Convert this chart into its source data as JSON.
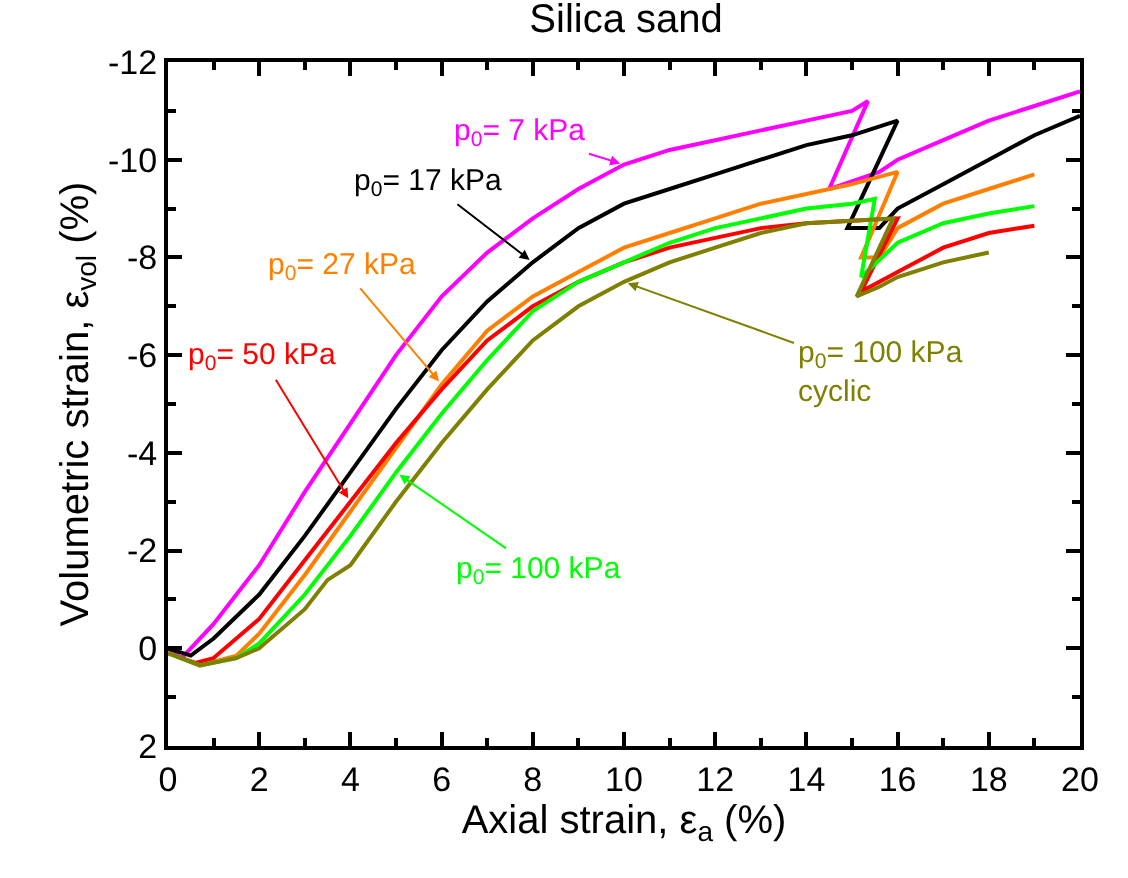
{
  "chart_data": {
    "type": "line",
    "title": "Silica sand",
    "xlabel": "Axial strain, ε$_{a}$ (%)",
    "ylabel": "Volumetric strain, ε$_{vol}$ (%)",
    "xlim": [
      0,
      20
    ],
    "xticks": [
      0,
      2,
      4,
      6,
      8,
      10,
      12,
      14,
      16,
      18,
      20
    ],
    "ylim": [
      2,
      -12
    ],
    "yticks": [
      2,
      0,
      -2,
      -4,
      -6,
      -8,
      -10,
      -12
    ],
    "grid": false,
    "legend": false,
    "marker": "none",
    "line_style": "solid",
    "series": [
      {
        "name": "p$_{0}$= 7 kPa",
        "color": "#ff00ff",
        "x": [
          0,
          0.3,
          1,
          2,
          3,
          4,
          5,
          6,
          7,
          8,
          9,
          10,
          11,
          12,
          13,
          14,
          15,
          15.35,
          14.5,
          15.6,
          16,
          17,
          18,
          19,
          20
        ],
        "values": [
          0,
          0.2,
          -0.5,
          -1.7,
          -3.2,
          -4.6,
          -6.0,
          -7.2,
          -8.1,
          -8.8,
          -9.4,
          -9.9,
          -10.2,
          -10.4,
          -10.6,
          -10.8,
          -11.0,
          -11.2,
          -9.4,
          -9.75,
          -10.0,
          -10.4,
          -10.8,
          -11.1,
          -11.4
        ]
      },
      {
        "name": "p$_{0}$= 17 kPa",
        "color": "#000000",
        "x": [
          0,
          0.5,
          1,
          2,
          3,
          4,
          5,
          6,
          7,
          8,
          9,
          10,
          11,
          12,
          13,
          14,
          15,
          16,
          14.9,
          15.6,
          16,
          17,
          18,
          19,
          20
        ],
        "values": [
          0,
          0.15,
          -0.2,
          -1.1,
          -2.3,
          -3.6,
          -4.9,
          -6.1,
          -7.1,
          -7.9,
          -8.6,
          -9.1,
          -9.4,
          -9.7,
          -10.0,
          -10.3,
          -10.5,
          -10.8,
          -8.6,
          -8.6,
          -9.0,
          -9.5,
          -10.0,
          -10.5,
          -10.9
        ]
      },
      {
        "name": "p$_{0}$= 27 kPa",
        "color": "#ff8000",
        "x": [
          0,
          0.7,
          1.5,
          2,
          3,
          4,
          5,
          6,
          7,
          8,
          9,
          10,
          11,
          12,
          13,
          14,
          15,
          16,
          15.2,
          15.6,
          16,
          17,
          18,
          19
        ],
        "values": [
          0.1,
          0.35,
          0.15,
          -0.3,
          -1.5,
          -2.8,
          -4.1,
          -5.4,
          -6.5,
          -7.2,
          -7.7,
          -8.2,
          -8.5,
          -8.8,
          -9.1,
          -9.3,
          -9.5,
          -9.75,
          -8.0,
          -8.0,
          -8.6,
          -9.1,
          -9.4,
          -9.7
        ]
      },
      {
        "name": "p$_{0}$= 50 kPa",
        "color": "#ff0000",
        "x": [
          0,
          0.6,
          1,
          2,
          3,
          4,
          5,
          6,
          7,
          8,
          9,
          10,
          11,
          12,
          13,
          14,
          15,
          16,
          15.2,
          16,
          17,
          18,
          19
        ],
        "values": [
          0.1,
          0.3,
          0.2,
          -0.6,
          -1.8,
          -3.0,
          -4.2,
          -5.3,
          -6.3,
          -7.0,
          -7.5,
          -7.9,
          -8.2,
          -8.4,
          -8.6,
          -8.7,
          -8.75,
          -8.8,
          -7.3,
          -7.7,
          -8.2,
          -8.5,
          -8.65
        ]
      },
      {
        "name": "p$_{0}$= 100 kPa",
        "color": "#00ff00",
        "x": [
          0,
          0.7,
          1.5,
          2,
          3,
          4,
          5,
          6,
          7,
          8,
          9,
          10,
          11,
          12,
          13,
          14,
          15,
          15.5,
          15.2,
          16,
          17,
          18,
          19
        ],
        "values": [
          0.1,
          0.35,
          0.2,
          -0.1,
          -1.1,
          -2.3,
          -3.6,
          -4.8,
          -5.9,
          -6.9,
          -7.5,
          -7.9,
          -8.3,
          -8.6,
          -8.8,
          -9.0,
          -9.1,
          -9.2,
          -7.6,
          -8.3,
          -8.7,
          -8.9,
          -9.05
        ]
      },
      {
        "name": "p$_{0}$= 100 kPa\ncyclic",
        "color": "#808000",
        "x": [
          0,
          0.7,
          1.5,
          2,
          3,
          3.5,
          4,
          5,
          6,
          7,
          8,
          9,
          10,
          11,
          12,
          13,
          14,
          15,
          15.9,
          15.1,
          15.6,
          16,
          17,
          18
        ],
        "values": [
          0.1,
          0.35,
          0.2,
          0,
          -0.8,
          -1.4,
          -1.7,
          -3.0,
          -4.2,
          -5.3,
          -6.3,
          -7.0,
          -7.5,
          -7.9,
          -8.2,
          -8.5,
          -8.7,
          -8.75,
          -8.8,
          -7.2,
          -7.4,
          -7.6,
          -7.9,
          -8.1
        ]
      }
    ]
  }
}
